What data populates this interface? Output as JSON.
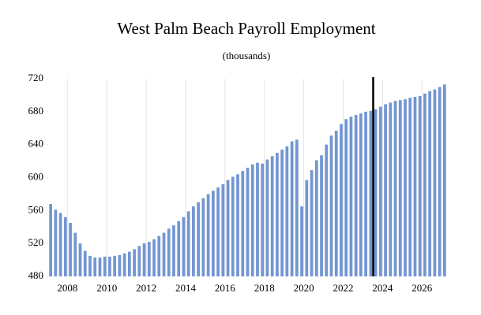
{
  "chart_data": {
    "type": "bar",
    "title": "West Palm Beach Payroll Employment",
    "subtitle": "(thousands)",
    "categories": [
      null,
      null,
      null,
      null,
      "2008",
      null,
      null,
      null,
      null,
      null,
      null,
      null,
      "2010",
      null,
      null,
      null,
      null,
      null,
      null,
      null,
      "2012",
      null,
      null,
      null,
      null,
      null,
      null,
      null,
      "2014",
      null,
      null,
      null,
      null,
      null,
      null,
      null,
      "2016",
      null,
      null,
      null,
      null,
      null,
      null,
      null,
      "2018",
      null,
      null,
      null,
      null,
      null,
      null,
      null,
      "2020",
      null,
      null,
      null,
      null,
      null,
      null,
      null,
      "2022",
      null,
      null,
      null,
      null,
      null,
      null,
      null,
      "2024",
      null,
      null,
      null,
      null,
      null,
      null,
      null,
      "2026",
      null,
      null,
      null,
      null
    ],
    "values": [
      568,
      561,
      557,
      552,
      545,
      533,
      520,
      511,
      505,
      503,
      503,
      504,
      504,
      505,
      506,
      508,
      510,
      513,
      517,
      520,
      522,
      525,
      529,
      533,
      538,
      542,
      547,
      552,
      559,
      565,
      570,
      575,
      580,
      584,
      588,
      592,
      597,
      601,
      604,
      608,
      612,
      616,
      618,
      617,
      622,
      626,
      630,
      634,
      638,
      644,
      646,
      565,
      597,
      609,
      621,
      627,
      640,
      651,
      657,
      665,
      671,
      674,
      676,
      678,
      680,
      681,
      683,
      686,
      689,
      691,
      693,
      694,
      695,
      697,
      698,
      699,
      702,
      705,
      707,
      710,
      713
    ],
    "color": "#7396d2",
    "ylim": [
      480,
      720
    ],
    "yticks": [
      480,
      520,
      560,
      600,
      640,
      680,
      720
    ]
  }
}
